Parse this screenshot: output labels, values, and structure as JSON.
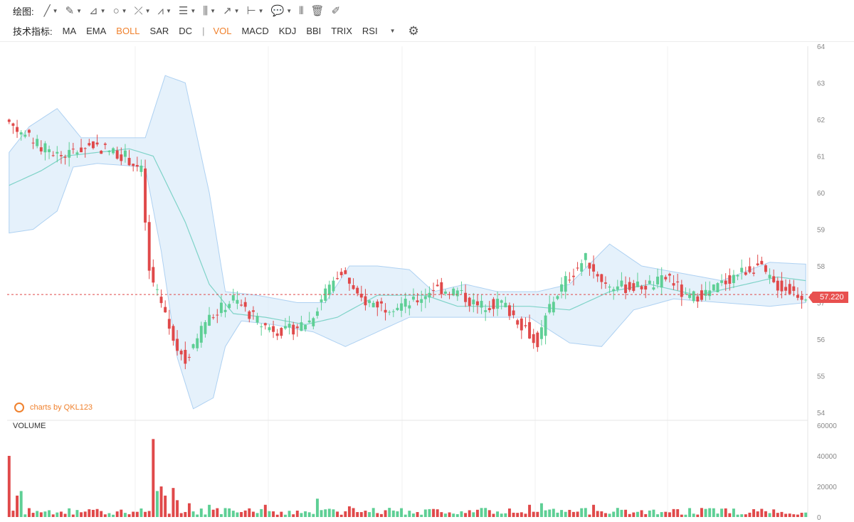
{
  "toolbar": {
    "draw_label": "绘图:",
    "draw_tools": [
      {
        "name": "line-tool-icon",
        "glyph": "╱"
      },
      {
        "name": "pen-tool-icon",
        "glyph": "✎"
      },
      {
        "name": "angle-tool-icon",
        "glyph": "⊿"
      },
      {
        "name": "circle-tool-icon",
        "glyph": "○"
      },
      {
        "name": "cross-tool-icon",
        "glyph": "⤫"
      },
      {
        "name": "pattern-tool-icon",
        "glyph": "⩘"
      },
      {
        "name": "fib-tool-icon",
        "glyph": "☰"
      },
      {
        "name": "gann-tool-icon",
        "glyph": "⫼"
      },
      {
        "name": "arrow-tool-icon",
        "glyph": "↗"
      },
      {
        "name": "range-tool-icon",
        "glyph": "⊢"
      },
      {
        "name": "comment-tool-icon",
        "glyph": "💬"
      }
    ],
    "extra_tools": [
      {
        "name": "candle-pin-icon",
        "glyph": "⫴"
      },
      {
        "name": "trash-icon",
        "glyph": "🗑"
      },
      {
        "name": "eraser-icon",
        "glyph": "✐"
      }
    ],
    "indicators_label": "技术指标:",
    "main_indicators": [
      "MA",
      "EMA",
      "BOLL",
      "SAR",
      "DC"
    ],
    "main_active": "BOLL",
    "separator": "|",
    "sub_indicators": [
      "VOL",
      "MACD",
      "KDJ",
      "BBI",
      "TRIX",
      "RSI"
    ],
    "sub_active": "VOL"
  },
  "colors": {
    "up": "#5ecf95",
    "down": "#e0494a",
    "band_fill": "#dcecfa",
    "band_edge": "#aed1f2",
    "mid_line": "#7fd3c8",
    "accent": "#f0812d"
  },
  "price_axis": {
    "ticks": [
      "64",
      "63",
      "62",
      "61",
      "60",
      "59",
      "58",
      "57",
      "56",
      "55",
      "54"
    ]
  },
  "volume_axis": {
    "ticks": [
      "60000",
      "40000",
      "20000",
      "0"
    ]
  },
  "watermark": "charts by QKL123",
  "volume_label": "VOLUME",
  "last_price": "57.220",
  "chart_data": {
    "type": "candlestick",
    "y_min": 54,
    "y_max": 64,
    "vol_max": 60000,
    "last_price": 57.22,
    "candle_count": 200,
    "anchors": [
      {
        "i": 0,
        "p": 62.0
      },
      {
        "i": 8,
        "p": 61.3
      },
      {
        "i": 14,
        "p": 61.0
      },
      {
        "i": 22,
        "p": 61.3
      },
      {
        "i": 30,
        "p": 61.0
      },
      {
        "i": 34,
        "p": 60.6
      },
      {
        "i": 36,
        "p": 57.8
      },
      {
        "i": 41,
        "p": 56.3
      },
      {
        "i": 45,
        "p": 55.4
      },
      {
        "i": 50,
        "p": 56.5
      },
      {
        "i": 57,
        "p": 57.1
      },
      {
        "i": 64,
        "p": 56.4
      },
      {
        "i": 70,
        "p": 56.2
      },
      {
        "i": 76,
        "p": 56.5
      },
      {
        "i": 80,
        "p": 57.3
      },
      {
        "i": 84,
        "p": 57.9
      },
      {
        "i": 88,
        "p": 57.1
      },
      {
        "i": 95,
        "p": 56.9
      },
      {
        "i": 102,
        "p": 57.0
      },
      {
        "i": 107,
        "p": 57.4
      },
      {
        "i": 113,
        "p": 57.3
      },
      {
        "i": 118,
        "p": 56.9
      },
      {
        "i": 124,
        "p": 57.0
      },
      {
        "i": 130,
        "p": 56.3
      },
      {
        "i": 133,
        "p": 55.9
      },
      {
        "i": 136,
        "p": 56.9
      },
      {
        "i": 140,
        "p": 57.6
      },
      {
        "i": 145,
        "p": 58.2
      },
      {
        "i": 150,
        "p": 57.5
      },
      {
        "i": 156,
        "p": 57.4
      },
      {
        "i": 162,
        "p": 57.5
      },
      {
        "i": 166,
        "p": 57.7
      },
      {
        "i": 170,
        "p": 57.1
      },
      {
        "i": 176,
        "p": 57.3
      },
      {
        "i": 183,
        "p": 57.8
      },
      {
        "i": 188,
        "p": 58.0
      },
      {
        "i": 192,
        "p": 57.5
      },
      {
        "i": 199,
        "p": 57.2
      }
    ],
    "band_upper": [
      {
        "i": 0,
        "p": 61.1
      },
      {
        "i": 5,
        "p": 61.8
      },
      {
        "i": 12,
        "p": 62.3
      },
      {
        "i": 18,
        "p": 61.5
      },
      {
        "i": 30,
        "p": 61.5
      },
      {
        "i": 34,
        "p": 61.5
      },
      {
        "i": 39,
        "p": 63.2
      },
      {
        "i": 44,
        "p": 63.0
      },
      {
        "i": 50,
        "p": 60.0
      },
      {
        "i": 54,
        "p": 57.3
      },
      {
        "i": 62,
        "p": 57.2
      },
      {
        "i": 72,
        "p": 57.0
      },
      {
        "i": 79,
        "p": 57.0
      },
      {
        "i": 85,
        "p": 58.0
      },
      {
        "i": 92,
        "p": 58.0
      },
      {
        "i": 100,
        "p": 57.9
      },
      {
        "i": 106,
        "p": 57.3
      },
      {
        "i": 114,
        "p": 57.5
      },
      {
        "i": 122,
        "p": 57.3
      },
      {
        "i": 132,
        "p": 57.3
      },
      {
        "i": 140,
        "p": 57.5
      },
      {
        "i": 150,
        "p": 58.6
      },
      {
        "i": 158,
        "p": 58.0
      },
      {
        "i": 168,
        "p": 57.8
      },
      {
        "i": 178,
        "p": 57.6
      },
      {
        "i": 190,
        "p": 58.1
      },
      {
        "i": 199,
        "p": 58.05
      }
    ],
    "band_lower": [
      {
        "i": 0,
        "p": 58.9
      },
      {
        "i": 6,
        "p": 59.0
      },
      {
        "i": 12,
        "p": 59.5
      },
      {
        "i": 16,
        "p": 60.7
      },
      {
        "i": 22,
        "p": 60.8
      },
      {
        "i": 34,
        "p": 60.7
      },
      {
        "i": 38,
        "p": 58.4
      },
      {
        "i": 42,
        "p": 55.5
      },
      {
        "i": 46,
        "p": 54.1
      },
      {
        "i": 51,
        "p": 54.4
      },
      {
        "i": 54,
        "p": 55.8
      },
      {
        "i": 58,
        "p": 56.5
      },
      {
        "i": 66,
        "p": 56.4
      },
      {
        "i": 76,
        "p": 56.2
      },
      {
        "i": 84,
        "p": 55.8
      },
      {
        "i": 92,
        "p": 56.2
      },
      {
        "i": 100,
        "p": 56.6
      },
      {
        "i": 110,
        "p": 56.6
      },
      {
        "i": 122,
        "p": 56.6
      },
      {
        "i": 130,
        "p": 56.6
      },
      {
        "i": 140,
        "p": 55.9
      },
      {
        "i": 148,
        "p": 55.8
      },
      {
        "i": 156,
        "p": 56.8
      },
      {
        "i": 166,
        "p": 57.1
      },
      {
        "i": 178,
        "p": 57.0
      },
      {
        "i": 190,
        "p": 56.9
      },
      {
        "i": 199,
        "p": 57.0
      }
    ],
    "band_mid": [
      {
        "i": 0,
        "p": 60.2
      },
      {
        "i": 8,
        "p": 60.6
      },
      {
        "i": 14,
        "p": 61.0
      },
      {
        "i": 30,
        "p": 61.2
      },
      {
        "i": 36,
        "p": 61.0
      },
      {
        "i": 44,
        "p": 59.2
      },
      {
        "i": 50,
        "p": 57.5
      },
      {
        "i": 56,
        "p": 56.7
      },
      {
        "i": 64,
        "p": 56.6
      },
      {
        "i": 74,
        "p": 56.4
      },
      {
        "i": 82,
        "p": 56.6
      },
      {
        "i": 92,
        "p": 57.2
      },
      {
        "i": 104,
        "p": 57.2
      },
      {
        "i": 112,
        "p": 56.9
      },
      {
        "i": 122,
        "p": 56.9
      },
      {
        "i": 130,
        "p": 56.9
      },
      {
        "i": 140,
        "p": 56.8
      },
      {
        "i": 150,
        "p": 57.3
      },
      {
        "i": 160,
        "p": 57.5
      },
      {
        "i": 172,
        "p": 57.2
      },
      {
        "i": 184,
        "p": 57.5
      },
      {
        "i": 192,
        "p": 57.7
      },
      {
        "i": 199,
        "p": 57.6
      }
    ],
    "volume_spikes": [
      {
        "i": 0,
        "v": 40000
      },
      {
        "i": 2,
        "v": 14000
      },
      {
        "i": 3,
        "v": 17000
      },
      {
        "i": 36,
        "v": 51000
      },
      {
        "i": 37,
        "v": 17000
      },
      {
        "i": 38,
        "v": 20000
      },
      {
        "i": 39,
        "v": 14000
      },
      {
        "i": 41,
        "v": 19000
      },
      {
        "i": 42,
        "v": 11000
      },
      {
        "i": 45,
        "v": 9000
      },
      {
        "i": 50,
        "v": 8000
      },
      {
        "i": 77,
        "v": 12000
      },
      {
        "i": 64,
        "v": 8000
      },
      {
        "i": 85,
        "v": 7000
      },
      {
        "i": 130,
        "v": 8000
      },
      {
        "i": 133,
        "v": 9000
      },
      {
        "i": 146,
        "v": 8000
      }
    ]
  }
}
